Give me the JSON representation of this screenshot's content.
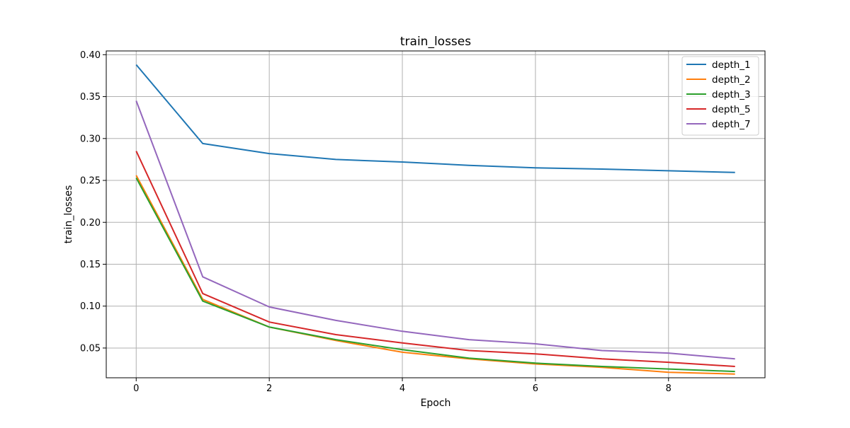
{
  "chart_data": {
    "type": "line",
    "title": "train_losses",
    "xlabel": "Epoch",
    "ylabel": "train_losses",
    "xlim": [
      -0.45,
      9.45
    ],
    "ylim": [
      0.0145,
      0.4045
    ],
    "xticks": [
      0,
      2,
      4,
      6,
      8
    ],
    "xtick_labels": [
      "0",
      "2",
      "4",
      "6",
      "8"
    ],
    "yticks": [
      0.05,
      0.1,
      0.15,
      0.2,
      0.25,
      0.3,
      0.35,
      0.4
    ],
    "ytick_labels": [
      "0.05",
      "0.10",
      "0.15",
      "0.20",
      "0.25",
      "0.30",
      "0.35",
      "0.40"
    ],
    "grid": true,
    "legend_position": "top-right",
    "x": [
      0,
      1,
      2,
      3,
      4,
      5,
      6,
      7,
      8,
      9
    ],
    "series": [
      {
        "name": "depth_1",
        "color": "#1f77b4",
        "values": [
          0.388,
          0.294,
          0.282,
          0.275,
          0.272,
          0.268,
          0.265,
          0.2635,
          0.2615,
          0.2595
        ]
      },
      {
        "name": "depth_2",
        "color": "#ff7f0e",
        "values": [
          0.256,
          0.108,
          0.075,
          0.059,
          0.045,
          0.037,
          0.031,
          0.027,
          0.021,
          0.019
        ]
      },
      {
        "name": "depth_3",
        "color": "#2ca02c",
        "values": [
          0.253,
          0.106,
          0.075,
          0.06,
          0.048,
          0.038,
          0.032,
          0.028,
          0.025,
          0.022
        ]
      },
      {
        "name": "depth_5",
        "color": "#d62728",
        "values": [
          0.285,
          0.115,
          0.081,
          0.066,
          0.056,
          0.047,
          0.043,
          0.037,
          0.033,
          0.028
        ]
      },
      {
        "name": "depth_7",
        "color": "#9467bd",
        "values": [
          0.345,
          0.135,
          0.099,
          0.083,
          0.07,
          0.06,
          0.055,
          0.047,
          0.044,
          0.037
        ]
      }
    ]
  }
}
